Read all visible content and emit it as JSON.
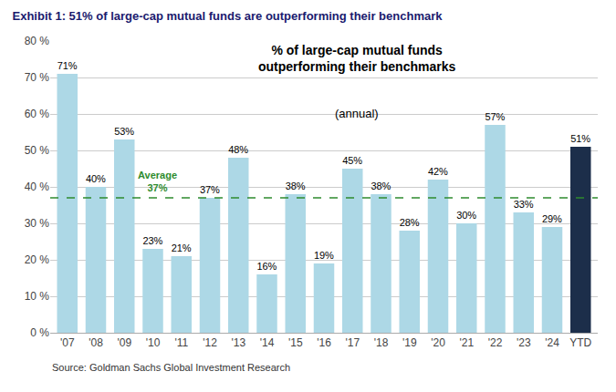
{
  "chart_data": {
    "type": "bar",
    "title": "Exhibit 1: 51% of large-cap mutual funds are outperforming their benchmark",
    "subtitle": [
      "% of large-cap mutual funds",
      "outperforming their benchmarks",
      "(annual)"
    ],
    "source": "Source: Goldman Sachs Global Investment Research",
    "categories": [
      "'07",
      "'08",
      "'09",
      "'10",
      "'11",
      "'12",
      "'13",
      "'14",
      "'15",
      "'16",
      "'17",
      "'18",
      "'19",
      "'20",
      "'21",
      "'22",
      "'23",
      "'24",
      "YTD"
    ],
    "values": [
      71,
      40,
      53,
      23,
      21,
      37,
      48,
      16,
      38,
      19,
      45,
      38,
      28,
      42,
      30,
      57,
      33,
      29,
      51
    ],
    "value_labels": [
      "71%",
      "40%",
      "53%",
      "23%",
      "21%",
      "37%",
      "48%",
      "16%",
      "38%",
      "19%",
      "45%",
      "38%",
      "28%",
      "42%",
      "30%",
      "57%",
      "33%",
      "29%",
      "51%"
    ],
    "colors": [
      "#add8e6",
      "#add8e6",
      "#add8e6",
      "#add8e6",
      "#add8e6",
      "#add8e6",
      "#add8e6",
      "#add8e6",
      "#add8e6",
      "#add8e6",
      "#add8e6",
      "#add8e6",
      "#add8e6",
      "#add8e6",
      "#add8e6",
      "#add8e6",
      "#add8e6",
      "#add8e6",
      "#1c2e4a"
    ],
    "data_labels": true,
    "average": {
      "value": 37,
      "label": [
        "Average",
        "37%"
      ],
      "color": "#2e8b2e",
      "line_style": "dashed"
    },
    "ylim": [
      0,
      80
    ],
    "yticks": [
      {
        "value": 0,
        "label": "0 %"
      },
      {
        "value": 10,
        "label": "10 %"
      },
      {
        "value": 20,
        "label": "20 %"
      },
      {
        "value": 30,
        "label": "30 %"
      },
      {
        "value": 40,
        "label": "40 %"
      },
      {
        "value": 50,
        "label": "50 %"
      },
      {
        "value": 60,
        "label": "60 %"
      },
      {
        "value": 70,
        "label": "70 %"
      },
      {
        "value": 80,
        "label": "80 %"
      }
    ],
    "grid": true
  }
}
